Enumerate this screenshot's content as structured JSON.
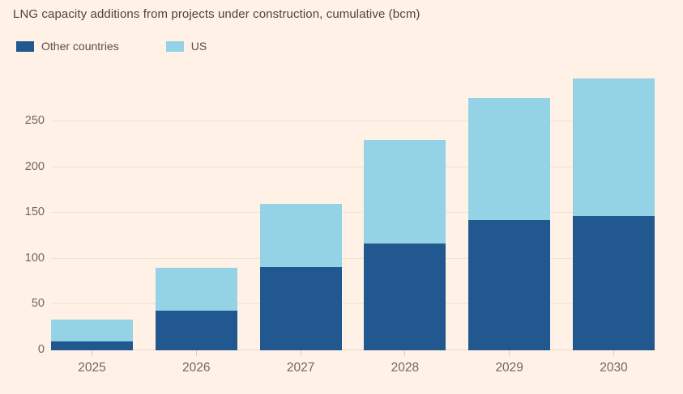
{
  "title": "LNG capacity additions from projects under construction, cumulative (bcm)",
  "legend": [
    {
      "label": "Other countries",
      "color": "#215890"
    },
    {
      "label": "US",
      "color": "#94d3e6"
    }
  ],
  "colors": {
    "background": "#fff1e5",
    "other_countries": "#215890",
    "us": "#94d3e6",
    "gridline": "#f3e2d2",
    "axis_text": "#6e6862",
    "title_text": "#4a4541"
  },
  "chart_data": {
    "type": "bar",
    "stacked": true,
    "title": "LNG capacity additions from projects under construction, cumulative (bcm)",
    "xlabel": "",
    "ylabel": "",
    "unit": "bcm",
    "categories": [
      "2025",
      "2026",
      "2027",
      "2028",
      "2029",
      "2030"
    ],
    "series": [
      {
        "name": "Other countries",
        "color": "#215890",
        "values": [
          10,
          43,
          91,
          117,
          142,
          147
        ]
      },
      {
        "name": "US",
        "color": "#94d3e6",
        "values": [
          24,
          47,
          69,
          113,
          134,
          150
        ]
      }
    ],
    "totals": [
      34,
      90,
      160,
      230,
      276,
      297
    ],
    "ylim": [
      0,
      305
    ],
    "yticks": [
      0,
      50,
      100,
      150,
      200,
      250
    ],
    "grid": true,
    "legend_position": "top-left"
  }
}
